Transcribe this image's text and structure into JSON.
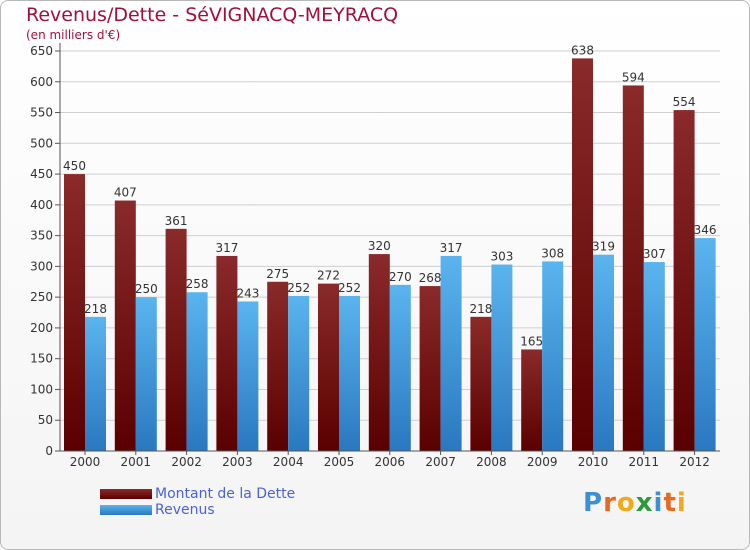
{
  "header": {
    "title": "Revenus/Dette - SéVIGNACQ-MEYRACQ",
    "subtitle": "(en milliers d'€)"
  },
  "legend": {
    "debt_label": "Montant de la Dette",
    "revenue_label": "Revenus"
  },
  "logo": {
    "text": "Proxiti",
    "letter_colors": [
      "#3a8fd6",
      "#e8691d",
      "#f0a81c",
      "#2a9a3a",
      "#3a8fd6",
      "#e8691d",
      "#f0a81c"
    ]
  },
  "colors": {
    "debt_top": "#8a2a2a",
    "debt_bottom": "#5a0000",
    "revenue_top": "#5ab4ee",
    "revenue_bottom": "#2a78c0",
    "grid": "#cfcfcf",
    "tick_text": "#333333"
  },
  "chart_data": {
    "type": "bar",
    "title": "Revenus/Dette - SéVIGNACQ-MEYRACQ",
    "ylabel": "(en milliers d'€)",
    "xlabel": "",
    "categories": [
      "2000",
      "2001",
      "2002",
      "2003",
      "2004",
      "2005",
      "2006",
      "2007",
      "2008",
      "2009",
      "2010",
      "2011",
      "2012"
    ],
    "series": [
      {
        "name": "Montant de la Dette",
        "values": [
          450,
          407,
          361,
          317,
          275,
          272,
          320,
          268,
          218,
          165,
          638,
          594,
          554
        ]
      },
      {
        "name": "Revenus",
        "values": [
          218,
          250,
          258,
          243,
          252,
          252,
          270,
          317,
          303,
          308,
          319,
          307,
          346
        ]
      }
    ],
    "ylim": [
      0,
      650
    ],
    "yticks": [
      0,
      50,
      100,
      150,
      200,
      250,
      300,
      350,
      400,
      450,
      500,
      550,
      600,
      650
    ],
    "grid": true,
    "legend_position": "bottom-left"
  }
}
